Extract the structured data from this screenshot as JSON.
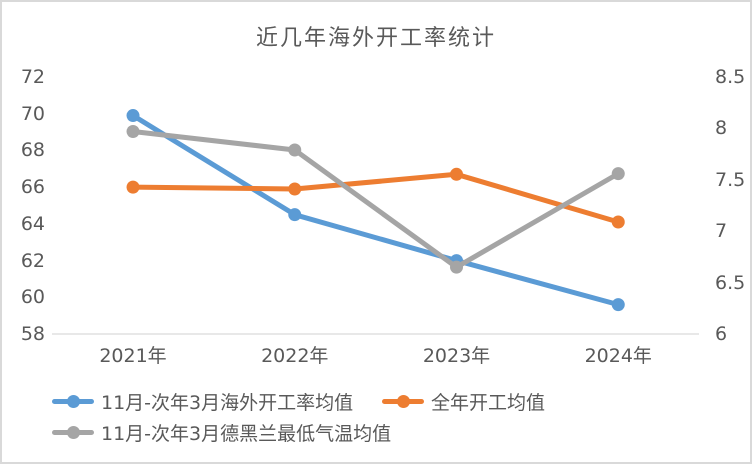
{
  "chart_data": {
    "type": "line",
    "title": "近几年海外开工率统计",
    "categories": [
      "2021年",
      "2022年",
      "2023年",
      "2024年"
    ],
    "series": [
      {
        "name": "11月-次年3月海外开工率均值",
        "color": "#5B9BD5",
        "axis": "left",
        "values": [
          69.9,
          64.5,
          62.0,
          59.6
        ]
      },
      {
        "name": "全年开工均值",
        "color": "#ED7D31",
        "axis": "left",
        "values": [
          66.0,
          65.9,
          66.7,
          64.1
        ]
      },
      {
        "name": "11月-次年3月德黑兰最低气温均值",
        "color": "#A5A5A5",
        "axis": "right",
        "values": [
          7.97,
          7.79,
          6.65,
          7.56
        ]
      }
    ],
    "left_axis": {
      "min": 58,
      "max": 72,
      "step": 2
    },
    "right_axis": {
      "min": 6,
      "max": 8.5,
      "step": 0.5
    },
    "grid": false,
    "legend_position": "bottom-left",
    "colors": {
      "text": "#595959",
      "axis_line": "#D9D9D9",
      "border": "#D9D9D9",
      "background": "#FFFFFF"
    }
  }
}
